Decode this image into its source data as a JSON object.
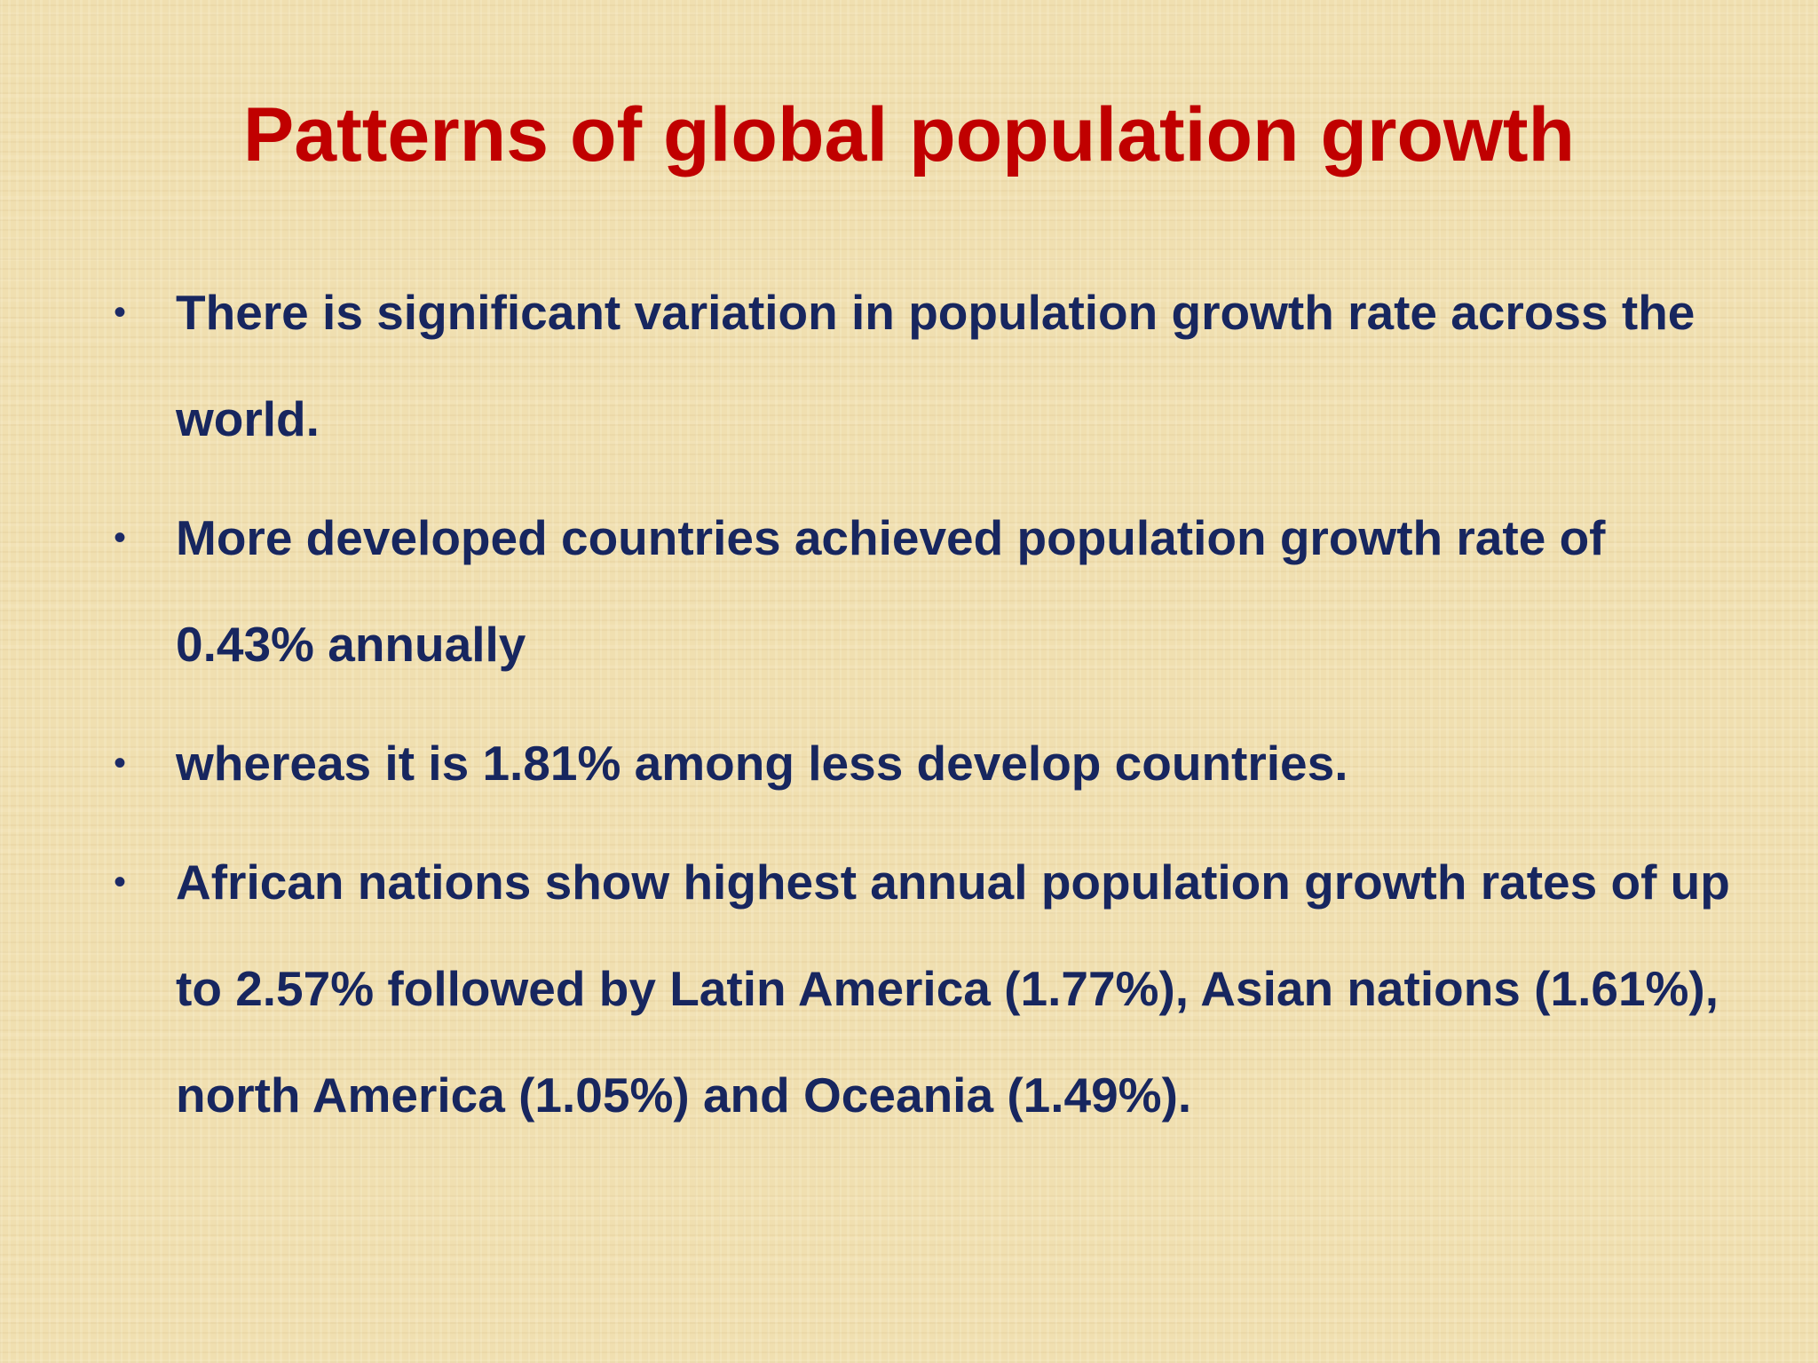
{
  "slide": {
    "title": "Patterns of global population growth",
    "bullet_glyph": "•",
    "bullets": [
      {
        "text": "There is significant variation in population growth rate across the world."
      },
      {
        "text": "More developed countries achieved population growth rate of 0.43% annually"
      },
      {
        "text": "whereas it is 1.81% among less develop countries."
      },
      {
        "text": "African nations show highest annual population growth rates of up to 2.57% followed by Latin America (1.77%), Asian nations (1.61%), north America (1.05%) and Oceania (1.49%)."
      }
    ]
  },
  "colors": {
    "title": "#c00000",
    "body_text": "#17265f",
    "background": "#f0dfb0"
  }
}
